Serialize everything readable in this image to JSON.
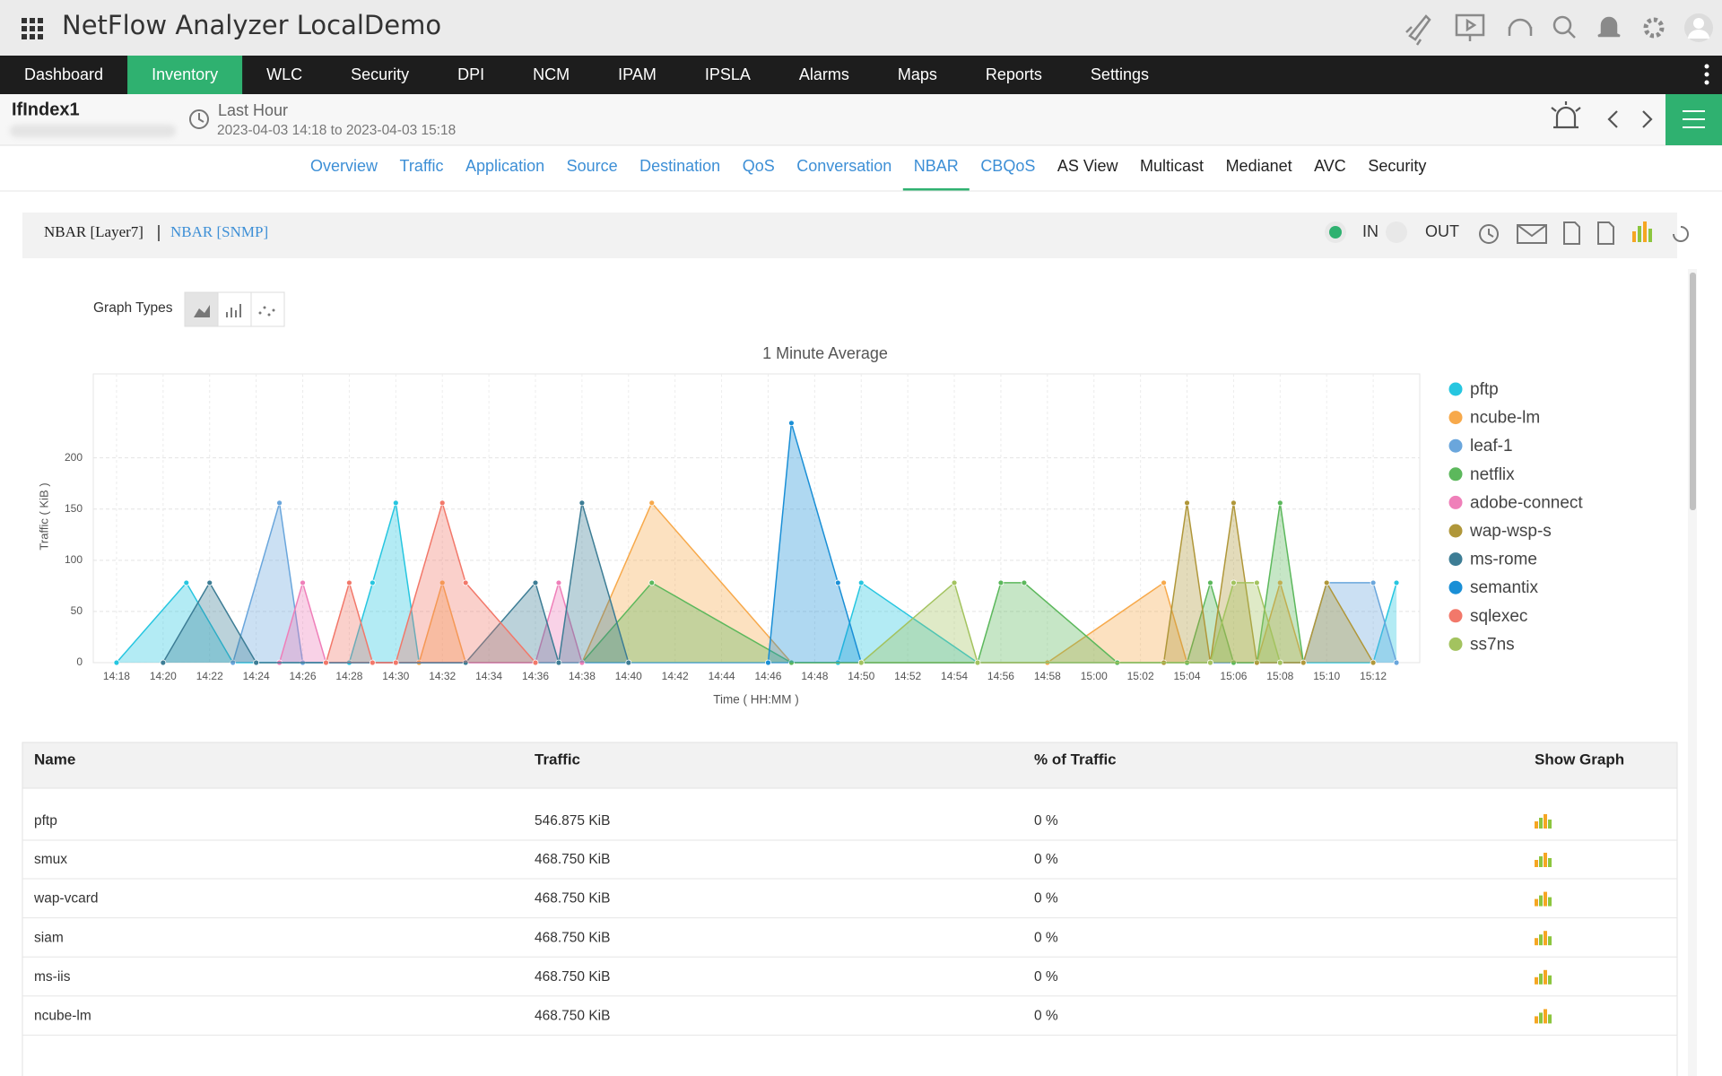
{
  "header": {
    "title": "NetFlow Analyzer LocalDemo"
  },
  "nav": {
    "items": [
      "Dashboard",
      "Inventory",
      "WLC",
      "Security",
      "DPI",
      "NCM",
      "IPAM",
      "IPSLA",
      "Alarms",
      "Maps",
      "Reports",
      "Settings"
    ],
    "active": 1
  },
  "context": {
    "device": "IfIndex1",
    "period": "Last Hour",
    "range": "2023-04-03 14:18 to 2023-04-03 15:18"
  },
  "tabs": {
    "items": [
      "Overview",
      "Traffic",
      "Application",
      "Source",
      "Destination",
      "QoS",
      "Conversation",
      "NBAR",
      "CBQoS",
      "AS View",
      "Multicast",
      "Medianet",
      "AVC",
      "Security"
    ],
    "active": 7
  },
  "panel": {
    "views": [
      "NBAR [Layer7]",
      "NBAR [SNMP]"
    ],
    "direction": [
      "IN",
      "OUT"
    ]
  },
  "graph_types_label": "Graph Types",
  "chart_data": {
    "type": "area",
    "title": "1 Minute Average",
    "x_label": "Time ( HH:MM )",
    "y_label": "Traffic ( KiB )",
    "xlim": [
      "14:17",
      "15:14"
    ],
    "xticks": [
      "14:18",
      "14:20",
      "14:22",
      "14:24",
      "14:26",
      "14:28",
      "14:30",
      "14:32",
      "14:34",
      "14:36",
      "14:38",
      "14:40",
      "14:42",
      "14:44",
      "14:46",
      "14:48",
      "14:50",
      "14:52",
      "14:54",
      "14:56",
      "14:58",
      "15:00",
      "15:02",
      "15:04",
      "15:06",
      "15:08",
      "15:10",
      "15:12"
    ],
    "ylim": [
      0,
      282
    ],
    "yticks": [
      0,
      50,
      100,
      150,
      200
    ],
    "grid": true,
    "legend": "right",
    "series": [
      {
        "name": "pftp",
        "color": "#26c6e0",
        "x": [
          "14:18",
          "14:21",
          "14:23",
          "14:28",
          "14:29",
          "14:30",
          "14:31",
          "14:49",
          "14:50",
          "14:55",
          "15:12",
          "15:13"
        ],
        "values": [
          0,
          78,
          0,
          0,
          78,
          156,
          0,
          0,
          78,
          0,
          0,
          78
        ]
      },
      {
        "name": "ncube-lm",
        "color": "#f7a94b",
        "x": [
          "14:31",
          "14:32",
          "14:33",
          "14:38",
          "14:41",
          "14:47",
          "14:58",
          "15:03",
          "15:04",
          "15:07",
          "15:08",
          "15:09"
        ],
        "values": [
          0,
          78,
          0,
          0,
          156,
          0,
          0,
          78,
          0,
          0,
          78,
          0
        ]
      },
      {
        "name": "leaf-1",
        "color": "#6aa6dc",
        "x": [
          "14:23",
          "14:25",
          "14:26",
          "15:09",
          "15:10",
          "15:12",
          "15:13"
        ],
        "values": [
          0,
          156,
          0,
          0,
          78,
          78,
          0
        ]
      },
      {
        "name": "netflix",
        "color": "#5cb85c",
        "x": [
          "14:38",
          "14:41",
          "14:47",
          "14:55",
          "14:56",
          "14:57",
          "15:01",
          "15:04",
          "15:05",
          "15:06",
          "15:07",
          "15:08",
          "15:09"
        ],
        "values": [
          0,
          78,
          0,
          0,
          78,
          78,
          0,
          0,
          78,
          0,
          0,
          156,
          0
        ]
      },
      {
        "name": "adobe-connect",
        "color": "#ef7fb9",
        "x": [
          "14:25",
          "14:26",
          "14:27",
          "14:36",
          "14:37",
          "14:38"
        ],
        "values": [
          0,
          78,
          0,
          0,
          78,
          0
        ]
      },
      {
        "name": "wap-wsp-s",
        "color": "#b0973a",
        "x": [
          "15:03",
          "15:04",
          "15:05",
          "15:06",
          "15:07",
          "15:09",
          "15:10",
          "15:12"
        ],
        "values": [
          0,
          156,
          0,
          156,
          0,
          0,
          78,
          0
        ]
      },
      {
        "name": "ms-rome",
        "color": "#3d7d95",
        "x": [
          "14:20",
          "14:22",
          "14:24",
          "14:33",
          "14:36",
          "14:37",
          "14:38",
          "14:40"
        ],
        "values": [
          0,
          78,
          0,
          0,
          78,
          0,
          156,
          0
        ]
      },
      {
        "name": "semantix",
        "color": "#1a8fd6",
        "x": [
          "14:46",
          "14:47",
          "14:49",
          "14:50"
        ],
        "values": [
          0,
          234,
          78,
          0
        ]
      },
      {
        "name": "sqlexec",
        "color": "#f2786a",
        "x": [
          "14:27",
          "14:28",
          "14:29",
          "14:30",
          "14:32",
          "14:33",
          "14:36"
        ],
        "values": [
          0,
          78,
          0,
          0,
          156,
          78,
          0
        ]
      },
      {
        "name": "ss7ns",
        "color": "#a3c35f",
        "x": [
          "14:50",
          "14:54",
          "14:55",
          "15:05",
          "15:06",
          "15:07",
          "15:08"
        ],
        "values": [
          0,
          78,
          0,
          0,
          78,
          78,
          0
        ]
      }
    ]
  },
  "table": {
    "columns": [
      "Name",
      "Traffic",
      "% of Traffic",
      "Show Graph"
    ],
    "rows": [
      [
        "pftp",
        "546.875 KiB",
        "0 %"
      ],
      [
        "smux",
        "468.750 KiB",
        "0 %"
      ],
      [
        "wap-vcard",
        "468.750 KiB",
        "0 %"
      ],
      [
        "siam",
        "468.750 KiB",
        "0 %"
      ],
      [
        "ms-iis",
        "468.750 KiB",
        "0 %"
      ],
      [
        "ncube-lm",
        "468.750 KiB",
        "0 %"
      ]
    ]
  }
}
